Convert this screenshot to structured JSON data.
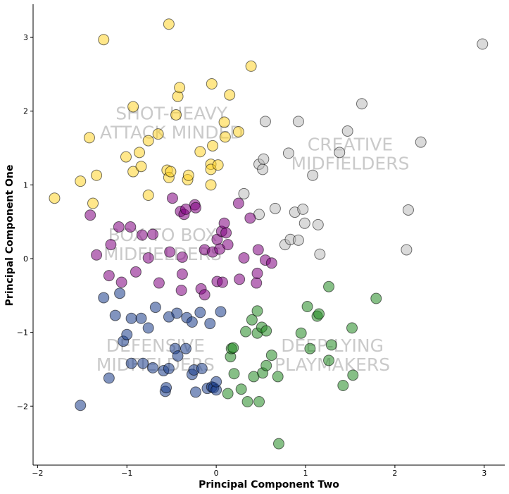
{
  "chart_data": {
    "type": "scatter",
    "xlabel": "Principal Component Two",
    "ylabel": "Principal Component One",
    "xlim": [
      -2.05,
      3.23
    ],
    "ylim": [
      -2.8,
      3.45
    ],
    "xticks": [
      -2,
      -1,
      0,
      1,
      2,
      3
    ],
    "yticks": [
      -2,
      -1,
      0,
      1,
      2,
      3
    ],
    "xtick_labels": [
      "−2",
      "−1",
      "0",
      "1",
      "2",
      "3"
    ],
    "ytick_labels": [
      "−2",
      "−1",
      "0",
      "1",
      "2",
      "3"
    ],
    "grid": false,
    "cluster_labels": [
      {
        "lines": [
          "SHOT-HEAVY",
          "ATTACK MINDED"
        ],
        "x": -0.5,
        "y": 1.85
      },
      {
        "lines": [
          "CREATIVE",
          "MIDFIELDERS"
        ],
        "x": 1.5,
        "y": 1.43
      },
      {
        "lines": [
          "BOX TO BOX",
          "MIDFIELDERS"
        ],
        "x": -0.6,
        "y": 0.2
      },
      {
        "lines": [
          "DEFENSIVE",
          "MIDFIELDERS"
        ],
        "x": -0.68,
        "y": -1.3
      },
      {
        "lines": [
          "DEEP-LYING",
          "PLAYMAKERS"
        ],
        "x": 1.3,
        "y": -1.3
      }
    ],
    "series": [
      {
        "color": "#ffd42a",
        "points": [
          [
            -1.81,
            0.82
          ],
          [
            -1.52,
            1.05
          ],
          [
            -1.42,
            1.64
          ],
          [
            -1.38,
            0.75
          ],
          [
            -1.34,
            1.13
          ],
          [
            -1.26,
            2.97
          ],
          [
            -1.01,
            1.38
          ],
          [
            -0.93,
            2.06
          ],
          [
            -0.93,
            1.18
          ],
          [
            -0.86,
            1.44
          ],
          [
            -0.84,
            1.25
          ],
          [
            -0.76,
            0.86
          ],
          [
            -0.76,
            1.6
          ],
          [
            -0.65,
            1.69
          ],
          [
            -0.53,
            3.18
          ],
          [
            -0.55,
            1.2
          ],
          [
            -0.53,
            1.1
          ],
          [
            -0.51,
            1.18
          ],
          [
            -0.45,
            1.95
          ],
          [
            -0.43,
            2.2
          ],
          [
            -0.41,
            2.32
          ],
          [
            -0.32,
            1.07
          ],
          [
            -0.31,
            1.13
          ],
          [
            -0.18,
            1.45
          ],
          [
            -0.06,
            1.28
          ],
          [
            -0.06,
            1.21
          ],
          [
            -0.06,
            1.0
          ],
          [
            -0.05,
            2.37
          ],
          [
            -0.04,
            1.53
          ],
          [
            0.02,
            1.27
          ],
          [
            0.09,
            1.85
          ],
          [
            0.1,
            1.65
          ],
          [
            0.15,
            2.22
          ],
          [
            0.25,
            1.72
          ],
          [
            0.39,
            2.61
          ]
        ]
      },
      {
        "color": "#bbbbbb",
        "points": [
          [
            0.31,
            0.88
          ],
          [
            0.48,
            0.6
          ],
          [
            0.48,
            1.28
          ],
          [
            0.52,
            1.21
          ],
          [
            0.53,
            1.35
          ],
          [
            0.55,
            1.86
          ],
          [
            0.66,
            0.68
          ],
          [
            0.77,
            0.19
          ],
          [
            0.81,
            1.43
          ],
          [
            0.83,
            0.26
          ],
          [
            0.88,
            0.63
          ],
          [
            0.92,
            1.86
          ],
          [
            0.92,
            0.25
          ],
          [
            0.97,
            0.67
          ],
          [
            0.99,
            0.48
          ],
          [
            1.08,
            1.13
          ],
          [
            1.14,
            0.46
          ],
          [
            1.16,
            0.06
          ],
          [
            1.38,
            1.44
          ],
          [
            1.47,
            1.73
          ],
          [
            1.63,
            2.1
          ],
          [
            2.13,
            0.12
          ],
          [
            2.15,
            0.66
          ],
          [
            2.29,
            1.58
          ],
          [
            2.98,
            2.91
          ]
        ]
      },
      {
        "color": "#800080",
        "points": [
          [
            -1.41,
            0.59
          ],
          [
            -1.34,
            0.05
          ],
          [
            -1.2,
            -0.23
          ],
          [
            -1.18,
            0.19
          ],
          [
            -1.09,
            0.43
          ],
          [
            -1.06,
            -0.32
          ],
          [
            -0.96,
            0.43
          ],
          [
            -0.9,
            -0.18
          ],
          [
            -0.83,
            0.32
          ],
          [
            -0.76,
            0.01
          ],
          [
            -0.71,
            0.33
          ],
          [
            -0.64,
            -0.33
          ],
          [
            -0.52,
            0.09
          ],
          [
            -0.49,
            0.82
          ],
          [
            -0.4,
            0.64
          ],
          [
            -0.39,
            -0.43
          ],
          [
            -0.38,
            -0.21
          ],
          [
            -0.38,
            0.02
          ],
          [
            -0.36,
            0.6
          ],
          [
            -0.34,
            0.67
          ],
          [
            -0.24,
            0.73
          ],
          [
            -0.23,
            0.69
          ],
          [
            -0.17,
            -0.41
          ],
          [
            -0.13,
            -0.49
          ],
          [
            -0.13,
            0.12
          ],
          [
            -0.04,
            0.09
          ],
          [
            0.01,
            0.26
          ],
          [
            0.01,
            -0.31
          ],
          [
            0.04,
            0.13
          ],
          [
            0.06,
            0.37
          ],
          [
            0.07,
            -0.32
          ],
          [
            0.09,
            0.48
          ],
          [
            0.11,
            0.35
          ],
          [
            0.13,
            0.19
          ],
          [
            0.25,
            0.75
          ],
          [
            0.26,
            -0.28
          ],
          [
            0.31,
            0.01
          ],
          [
            0.38,
            0.55
          ],
          [
            0.45,
            -0.33
          ],
          [
            0.46,
            -0.2
          ],
          [
            0.47,
            0.12
          ],
          [
            0.55,
            -0.02
          ],
          [
            0.62,
            -0.06
          ]
        ]
      },
      {
        "color": "#1a3d8a",
        "points": [
          [
            -1.52,
            -1.99
          ],
          [
            -1.26,
            -0.53
          ],
          [
            -1.2,
            -1.62
          ],
          [
            -1.13,
            -0.77
          ],
          [
            -1.08,
            -0.47
          ],
          [
            -1.04,
            -1.12
          ],
          [
            -1.0,
            -1.03
          ],
          [
            -0.95,
            -1.42
          ],
          [
            -0.95,
            -0.81
          ],
          [
            -0.84,
            -0.81
          ],
          [
            -0.82,
            -1.42
          ],
          [
            -0.76,
            -0.94
          ],
          [
            -0.71,
            -1.48
          ],
          [
            -0.68,
            -0.66
          ],
          [
            -0.59,
            -1.52
          ],
          [
            -0.57,
            -1.8
          ],
          [
            -0.56,
            -1.75
          ],
          [
            -0.53,
            -1.49
          ],
          [
            -0.53,
            -0.79
          ],
          [
            -0.46,
            -1.22
          ],
          [
            -0.44,
            -0.74
          ],
          [
            -0.43,
            -1.32
          ],
          [
            -0.34,
            -1.22
          ],
          [
            -0.33,
            -0.8
          ],
          [
            -0.27,
            -0.86
          ],
          [
            -0.27,
            -1.57
          ],
          [
            -0.25,
            -1.51
          ],
          [
            -0.23,
            -1.81
          ],
          [
            -0.18,
            -0.73
          ],
          [
            -0.16,
            -1.49
          ],
          [
            -0.1,
            -1.76
          ],
          [
            -0.07,
            -0.88
          ],
          [
            -0.05,
            -1.74
          ],
          [
            -0.03,
            -1.75
          ],
          [
            0.0,
            -1.78
          ],
          [
            0.0,
            -1.67
          ],
          [
            0.05,
            -0.72
          ]
        ]
      },
      {
        "color": "#228b22",
        "points": [
          [
            0.13,
            -1.83
          ],
          [
            0.16,
            -1.33
          ],
          [
            0.17,
            -1.22
          ],
          [
            0.19,
            -1.21
          ],
          [
            0.2,
            -1.56
          ],
          [
            0.28,
            -1.77
          ],
          [
            0.33,
            -0.99
          ],
          [
            0.35,
            -1.94
          ],
          [
            0.4,
            -0.83
          ],
          [
            0.42,
            -1.6
          ],
          [
            0.46,
            -1.01
          ],
          [
            0.46,
            -0.71
          ],
          [
            0.48,
            -1.94
          ],
          [
            0.51,
            -0.93
          ],
          [
            0.52,
            -1.55
          ],
          [
            0.56,
            -0.98
          ],
          [
            0.56,
            -1.45
          ],
          [
            0.62,
            -1.31
          ],
          [
            0.69,
            -1.6
          ],
          [
            0.7,
            -2.51
          ],
          [
            0.95,
            -1.01
          ],
          [
            1.02,
            -0.65
          ],
          [
            1.05,
            -1.22
          ],
          [
            1.13,
            -0.78
          ],
          [
            1.15,
            -0.75
          ],
          [
            1.26,
            -0.38
          ],
          [
            1.26,
            -1.38
          ],
          [
            1.29,
            -1.17
          ],
          [
            1.42,
            -1.72
          ],
          [
            1.52,
            -0.94
          ],
          [
            1.53,
            -1.58
          ],
          [
            1.79,
            -0.54
          ]
        ]
      }
    ]
  }
}
